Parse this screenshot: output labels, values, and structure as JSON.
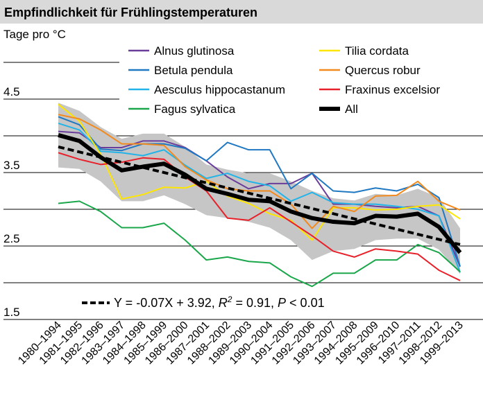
{
  "chart_data": {
    "type": "line",
    "title": "Empfindlichkeit für Frühlingstemperaturen",
    "ylabel": "Tage pro °C",
    "categories": [
      "1980–1994",
      "1981–1995",
      "1982–1996",
      "1983–1997",
      "1984–1998",
      "1985–1999",
      "1986–2000",
      "1987–2001",
      "1988–2002",
      "1989–2003",
      "1990–2004",
      "1991–2005",
      "1992–2006",
      "1993–2007",
      "1994–2008",
      "1995–2009",
      "1996–2010",
      "1997–2011",
      "1998–2012",
      "1999–2013"
    ],
    "ylim": [
      1.5,
      5.0
    ],
    "yticks": [
      1.5,
      2.5,
      3.5,
      4.5
    ],
    "yminorticks": [
      2,
      3,
      4,
      5
    ],
    "grid": true,
    "series": [
      {
        "name": "Alnus glutinosa",
        "color": "#6a3d9a",
        "values": [
          4.06,
          4.04,
          3.84,
          3.84,
          3.93,
          3.93,
          3.84,
          3.66,
          3.44,
          3.28,
          3.35,
          3.35,
          3.49,
          3.07,
          3.07,
          3.04,
          3.02,
          3.04,
          2.91,
          2.22
        ]
      },
      {
        "name": "Betula pendula",
        "color": "#1f78c1",
        "values": [
          4.26,
          4.15,
          3.82,
          3.8,
          3.89,
          3.89,
          3.83,
          3.66,
          3.91,
          3.81,
          3.81,
          3.28,
          3.49,
          3.25,
          3.23,
          3.29,
          3.25,
          3.34,
          3.16,
          2.22
        ]
      },
      {
        "name": "Aesculus hippocastanum",
        "color": "#22b4e8",
        "values": [
          4.17,
          4.08,
          3.79,
          3.77,
          3.73,
          3.81,
          3.6,
          3.42,
          3.49,
          3.38,
          3.32,
          3.11,
          3.23,
          3.09,
          3.07,
          3.07,
          3.04,
          3.0,
          2.91,
          2.14
        ]
      },
      {
        "name": "Fagus sylvatica",
        "color": "#1aa64a",
        "values": [
          3.08,
          3.11,
          2.97,
          2.75,
          2.75,
          2.81,
          2.58,
          2.31,
          2.35,
          2.29,
          2.27,
          2.08,
          1.95,
          2.13,
          2.13,
          2.31,
          2.31,
          2.52,
          2.41,
          2.15
        ]
      },
      {
        "name": "Tilia cordata",
        "color": "#ffe600",
        "values": [
          4.43,
          4.2,
          3.75,
          3.14,
          3.2,
          3.3,
          3.29,
          3.38,
          3.18,
          3.08,
          2.94,
          2.85,
          2.58,
          3.02,
          3.02,
          2.99,
          3.0,
          3.04,
          3.06,
          2.87
        ]
      },
      {
        "name": "Quercus robur",
        "color": "#f28a1e",
        "values": [
          4.29,
          4.23,
          4.08,
          3.89,
          3.89,
          3.87,
          3.58,
          3.4,
          3.28,
          3.25,
          3.25,
          3.07,
          2.74,
          3.04,
          2.97,
          3.18,
          3.19,
          3.38,
          3.11,
          2.99
        ]
      },
      {
        "name": "Fraxinus excelsior",
        "color": "#e8202a",
        "values": [
          3.77,
          3.68,
          3.61,
          3.64,
          3.7,
          3.68,
          3.44,
          3.25,
          2.88,
          2.85,
          3.02,
          2.83,
          2.64,
          2.43,
          2.35,
          2.46,
          2.43,
          2.39,
          2.17,
          2.03
        ]
      },
      {
        "name": "All",
        "color": "#000000",
        "values": [
          4.01,
          3.93,
          3.71,
          3.53,
          3.58,
          3.62,
          3.47,
          3.28,
          3.21,
          3.13,
          3.11,
          2.97,
          2.88,
          2.83,
          2.81,
          2.91,
          2.9,
          2.94,
          2.76,
          2.41
        ]
      }
    ],
    "band": {
      "color": "#c6c6c6",
      "upper": [
        4.45,
        4.34,
        4.12,
        3.96,
        4.03,
        4.03,
        3.85,
        3.61,
        3.54,
        3.49,
        3.49,
        3.38,
        3.25,
        3.15,
        3.12,
        3.21,
        3.19,
        3.28,
        3.16,
        2.74
      ],
      "lower": [
        3.57,
        3.55,
        3.38,
        3.11,
        3.11,
        3.19,
        3.07,
        2.92,
        2.88,
        2.83,
        2.75,
        2.58,
        2.31,
        2.43,
        2.46,
        2.58,
        2.6,
        2.6,
        2.45,
        2.12
      ]
    },
    "trend": {
      "color": "#000000",
      "values": [
        3.85,
        3.78,
        3.71,
        3.64,
        3.57,
        3.5,
        3.43,
        3.36,
        3.29,
        3.22,
        3.15,
        3.08,
        3.01,
        2.94,
        2.87,
        2.8,
        2.73,
        2.66,
        2.59,
        2.52
      ],
      "label": {
        "equation": "Y = -0.07X + 3.92, ",
        "r": "R",
        "sup": "2",
        "r_value": " = 0.91, ",
        "p": "P",
        "p_value": " < 0.01"
      }
    }
  }
}
